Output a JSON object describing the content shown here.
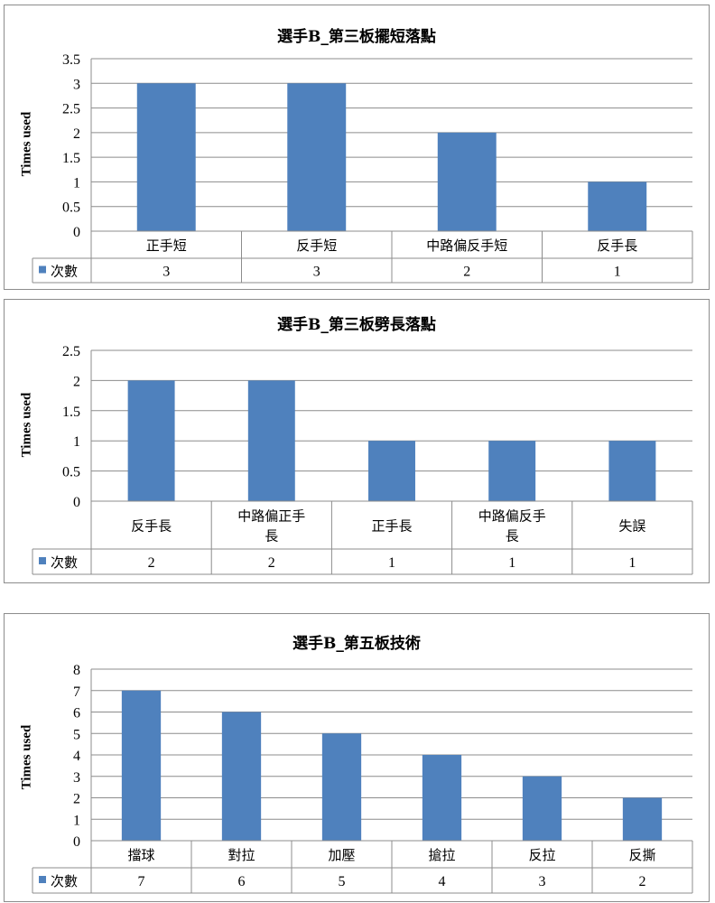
{
  "chart_data": [
    {
      "type": "bar",
      "title": "選手B_第三板擺短落點",
      "ylabel": "Times used",
      "xlabel": "",
      "ylim": [
        0,
        3.5
      ],
      "yticks": [
        "0",
        "0.5",
        "1",
        "1.5",
        "2",
        "2.5",
        "3",
        "3.5"
      ],
      "grid": true,
      "categories": [
        "正手短",
        "反手短",
        "中路偏反手短",
        "反手長"
      ],
      "series": [
        {
          "name": "次數",
          "values": [
            3,
            3,
            2,
            1
          ]
        }
      ],
      "data_table": true,
      "color": "#4f81bd"
    },
    {
      "type": "bar",
      "title": "選手B_第三板劈長落點",
      "ylabel": "Times used",
      "xlabel": "",
      "ylim": [
        0,
        2.5
      ],
      "yticks": [
        "0",
        "0.5",
        "1",
        "1.5",
        "2",
        "2.5"
      ],
      "grid": true,
      "categories": [
        "反手長",
        "中路偏正手長",
        "正手長",
        "中路偏反手長",
        "失誤"
      ],
      "series": [
        {
          "name": "次數",
          "values": [
            2,
            2,
            1,
            1,
            1
          ]
        }
      ],
      "data_table": true,
      "color": "#4f81bd"
    },
    {
      "type": "bar",
      "title": "選手B_第五板技術",
      "ylabel": "Times used",
      "xlabel": "",
      "ylim": [
        0,
        8
      ],
      "yticks": [
        "0",
        "1",
        "2",
        "3",
        "4",
        "5",
        "6",
        "7",
        "8"
      ],
      "grid": true,
      "categories": [
        "擋球",
        "對拉",
        "加壓",
        "搶拉",
        "反拉",
        "反撕"
      ],
      "series": [
        {
          "name": "次數",
          "values": [
            7,
            6,
            5,
            4,
            3,
            2
          ]
        }
      ],
      "data_table": true,
      "color": "#4f81bd"
    }
  ]
}
